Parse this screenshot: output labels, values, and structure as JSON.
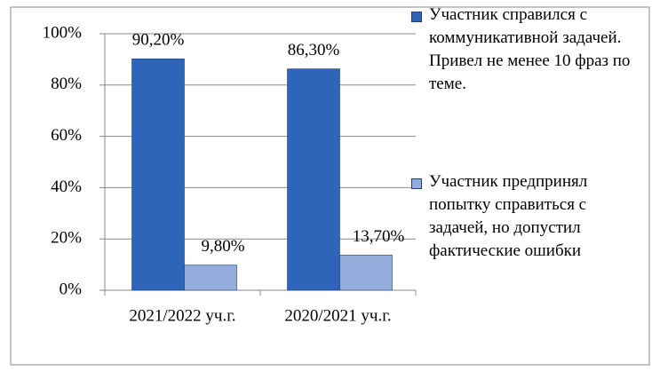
{
  "chart_data": {
    "type": "bar",
    "categories": [
      "2021/2022 уч.г.",
      "2020/2021 уч.г."
    ],
    "series": [
      {
        "name": "Участник справился с коммуникативной задачей. Привел не менее 10 фраз по теме.",
        "color": "#2f65b8",
        "values": [
          90.2,
          86.3
        ],
        "value_labels": [
          "90,20%",
          "86,30%"
        ]
      },
      {
        "name": "Участник предпринял попытку справиться с задачей, но допустил фактические ошибки",
        "color": "#93acdc",
        "values": [
          9.8,
          13.7
        ],
        "value_labels": [
          "9,80%",
          "13,70%"
        ]
      }
    ],
    "ylim": [
      0,
      100
    ],
    "yticks": [
      {
        "value": 0,
        "label": "0%"
      },
      {
        "value": 20,
        "label": "20%"
      },
      {
        "value": 40,
        "label": "40%"
      },
      {
        "value": 60,
        "label": "60%"
      },
      {
        "value": 80,
        "label": "80%"
      },
      {
        "value": 100,
        "label": "100%"
      }
    ],
    "grid": true,
    "legend": "right"
  }
}
